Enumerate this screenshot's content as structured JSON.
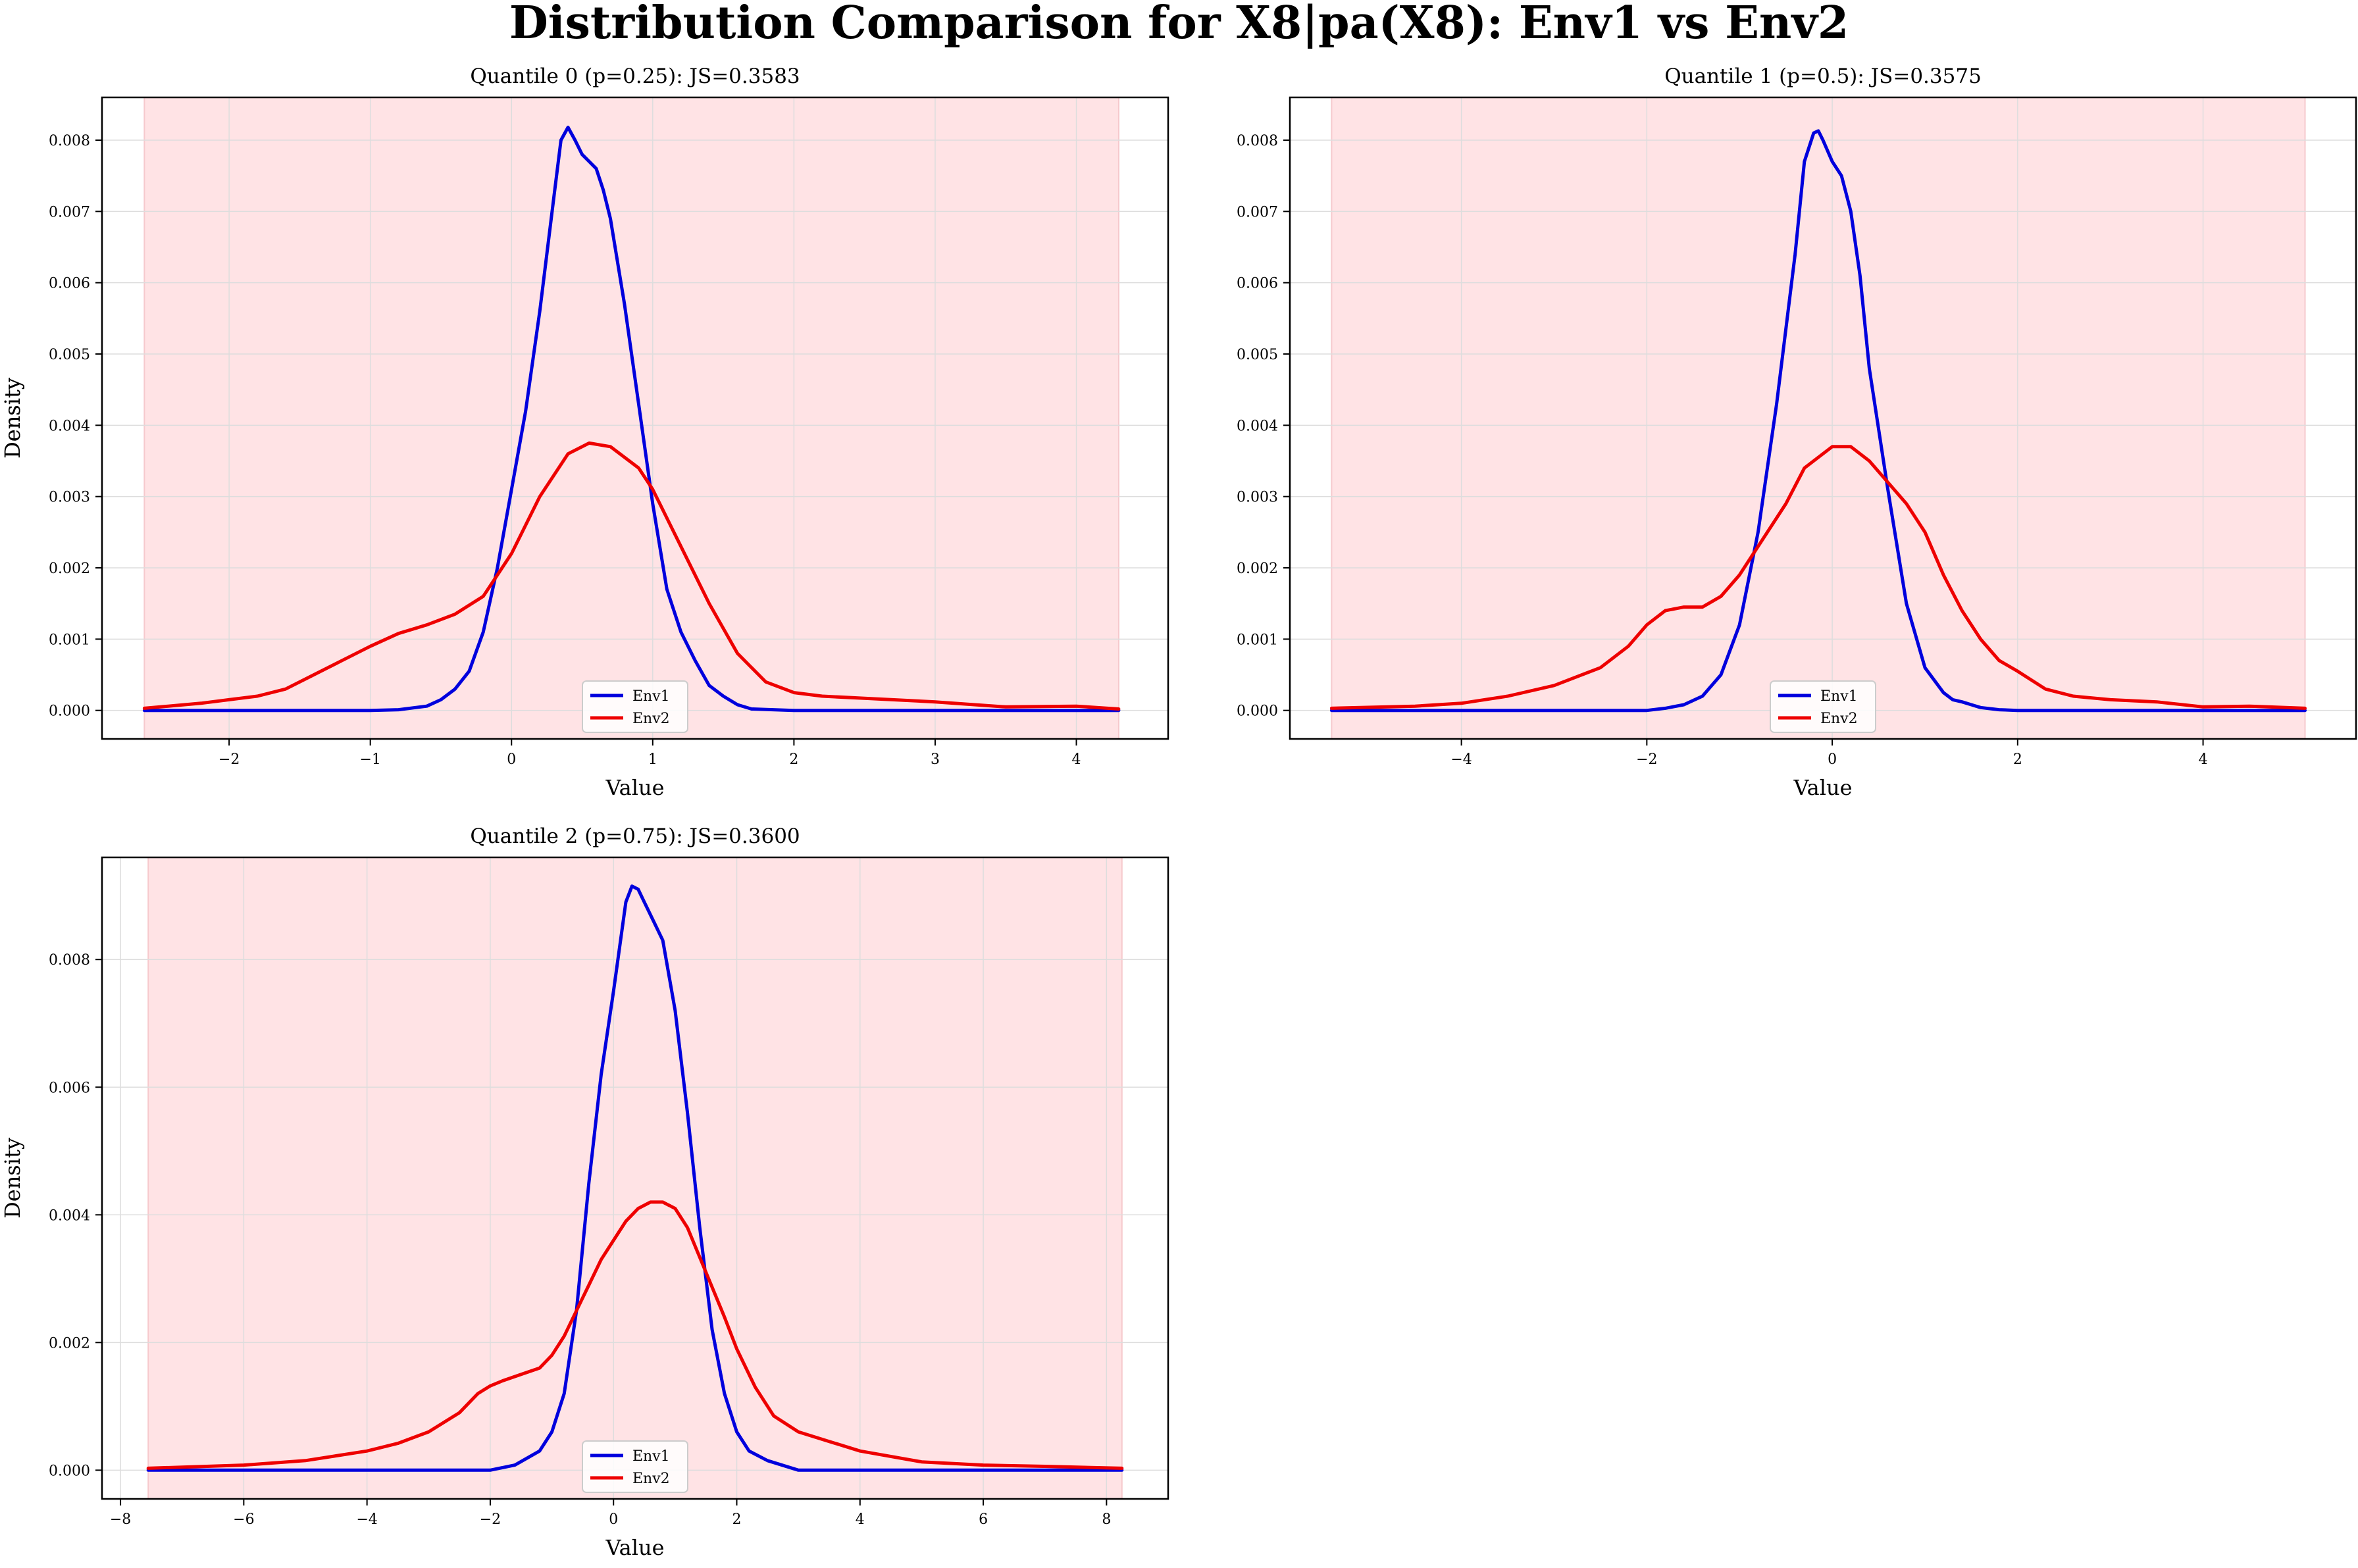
{
  "figure": {
    "title": "Distribution Comparison for X8|pa(X8): Env1 vs Env2"
  },
  "colors": {
    "env1": "#0000dd",
    "env2": "#ee0000",
    "band": "#ffe3e5",
    "band_edge": "#f6c9cd",
    "grid": "#dddddd"
  },
  "chart_data": [
    {
      "type": "line",
      "title": "Quantile 0 (p=0.25): JS=0.3583",
      "xlabel": "Value",
      "ylabel": "Density",
      "xlim": [
        -2.9,
        4.65
      ],
      "ylim": [
        -0.0004,
        0.0086
      ],
      "xticks": [
        -2,
        -1,
        0,
        1,
        2,
        3,
        4
      ],
      "xtick_labels": [
        "−2",
        "−1",
        "0",
        "1",
        "2",
        "3",
        "4"
      ],
      "yticks": [
        0,
        0.001,
        0.002,
        0.003,
        0.004,
        0.005,
        0.006,
        0.007,
        0.008
      ],
      "ytick_labels": [
        "0.000",
        "0.001",
        "0.002",
        "0.003",
        "0.004",
        "0.005",
        "0.006",
        "0.007",
        "0.008"
      ],
      "grid": true,
      "shaded_range": [
        -2.6,
        4.3
      ],
      "legend_position": "lower-center",
      "series": [
        {
          "name": "Env1",
          "color": "#0000dd",
          "x": [
            -2.6,
            -1.0,
            -0.8,
            -0.6,
            -0.5,
            -0.4,
            -0.3,
            -0.2,
            -0.1,
            0.0,
            0.1,
            0.2,
            0.3,
            0.35,
            0.4,
            0.45,
            0.5,
            0.55,
            0.6,
            0.65,
            0.7,
            0.8,
            0.9,
            1.0,
            1.1,
            1.2,
            1.3,
            1.4,
            1.5,
            1.6,
            1.7,
            2.0,
            4.3
          ],
          "y": [
            0.0,
            0.0,
            1e-05,
            6e-05,
            0.00015,
            0.0003,
            0.00055,
            0.0011,
            0.002,
            0.0031,
            0.0042,
            0.0056,
            0.0072,
            0.008,
            0.00818,
            0.008,
            0.0078,
            0.0077,
            0.0076,
            0.0073,
            0.0069,
            0.0057,
            0.0043,
            0.0029,
            0.0017,
            0.0011,
            0.0007,
            0.00035,
            0.0002,
            8e-05,
            2e-05,
            0.0,
            0.0
          ]
        },
        {
          "name": "Env2",
          "color": "#ee0000",
          "x": [
            -2.6,
            -2.2,
            -2.0,
            -1.8,
            -1.6,
            -1.4,
            -1.2,
            -1.0,
            -0.8,
            -0.6,
            -0.4,
            -0.2,
            0.0,
            0.2,
            0.4,
            0.55,
            0.7,
            0.9,
            1.0,
            1.2,
            1.4,
            1.6,
            1.8,
            2.0,
            2.2,
            2.5,
            3.0,
            3.5,
            4.0,
            4.3
          ],
          "y": [
            3e-05,
            0.0001,
            0.00015,
            0.0002,
            0.0003,
            0.0005,
            0.0007,
            0.0009,
            0.00108,
            0.0012,
            0.00135,
            0.0016,
            0.0022,
            0.003,
            0.0036,
            0.00375,
            0.0037,
            0.0034,
            0.0031,
            0.0023,
            0.0015,
            0.0008,
            0.0004,
            0.00025,
            0.0002,
            0.00017,
            0.00012,
            5e-05,
            6e-05,
            2e-05
          ]
        }
      ]
    },
    {
      "type": "line",
      "title": "Quantile 1 (p=0.5): JS=0.3575",
      "xlabel": "Value",
      "ylabel": "Density",
      "xlim": [
        -5.85,
        5.65
      ],
      "ylim": [
        -0.0004,
        0.0086
      ],
      "xticks": [
        -4,
        -2,
        0,
        2,
        4
      ],
      "xtick_labels": [
        "−4",
        "−2",
        "0",
        "2",
        "4"
      ],
      "yticks": [
        0,
        0.001,
        0.002,
        0.003,
        0.004,
        0.005,
        0.006,
        0.007,
        0.008
      ],
      "ytick_labels": [
        "0.000",
        "0.001",
        "0.002",
        "0.003",
        "0.004",
        "0.005",
        "0.006",
        "0.007",
        "0.008"
      ],
      "grid": true,
      "shaded_range": [
        -5.4,
        5.1
      ],
      "legend_position": "lower-center",
      "series": [
        {
          "name": "Env1",
          "color": "#0000dd",
          "x": [
            -5.4,
            -2.0,
            -1.8,
            -1.6,
            -1.4,
            -1.2,
            -1.0,
            -0.8,
            -0.6,
            -0.4,
            -0.3,
            -0.2,
            -0.15,
            -0.1,
            0.0,
            0.1,
            0.2,
            0.3,
            0.4,
            0.6,
            0.8,
            1.0,
            1.2,
            1.3,
            1.4,
            1.5,
            1.6,
            1.8,
            2.0,
            5.1
          ],
          "y": [
            0.0,
            0.0,
            3e-05,
            8e-05,
            0.0002,
            0.0005,
            0.0012,
            0.0025,
            0.0043,
            0.0064,
            0.0077,
            0.0081,
            0.00813,
            0.008,
            0.0077,
            0.0075,
            0.007,
            0.0061,
            0.0048,
            0.0031,
            0.0015,
            0.0006,
            0.00025,
            0.00015,
            0.00012,
            8e-05,
            4e-05,
            1e-05,
            0.0,
            0.0
          ]
        },
        {
          "name": "Env2",
          "color": "#ee0000",
          "x": [
            -5.4,
            -4.5,
            -4.0,
            -3.5,
            -3.0,
            -2.5,
            -2.2,
            -2.0,
            -1.8,
            -1.6,
            -1.4,
            -1.2,
            -1.0,
            -0.8,
            -0.5,
            -0.3,
            0.0,
            0.2,
            0.4,
            0.6,
            0.8,
            1.0,
            1.2,
            1.4,
            1.6,
            1.8,
            2.0,
            2.3,
            2.6,
            3.0,
            3.5,
            4.0,
            4.5,
            5.1
          ],
          "y": [
            3e-05,
            6e-05,
            0.0001,
            0.0002,
            0.00035,
            0.0006,
            0.0009,
            0.0012,
            0.0014,
            0.00145,
            0.00145,
            0.0016,
            0.0019,
            0.0023,
            0.0029,
            0.0034,
            0.0037,
            0.0037,
            0.0035,
            0.0032,
            0.0029,
            0.0025,
            0.0019,
            0.0014,
            0.001,
            0.0007,
            0.00055,
            0.0003,
            0.0002,
            0.00015,
            0.00012,
            5e-05,
            6e-05,
            3e-05
          ]
        }
      ]
    },
    {
      "type": "line",
      "title": "Quantile 2 (p=0.75): JS=0.3600",
      "xlabel": "Value",
      "ylabel": "Density",
      "xlim": [
        -8.3,
        9.0
      ],
      "ylim": [
        -0.00045,
        0.0096
      ],
      "xticks": [
        -8,
        -6,
        -4,
        -2,
        0,
        2,
        4,
        6,
        8
      ],
      "xtick_labels": [
        "−8",
        "−6",
        "−4",
        "−2",
        "0",
        "2",
        "4",
        "6",
        "8"
      ],
      "yticks": [
        0,
        0.002,
        0.004,
        0.006,
        0.008
      ],
      "ytick_labels": [
        "0.000",
        "0.002",
        "0.004",
        "0.006",
        "0.008"
      ],
      "grid": true,
      "shaded_range": [
        -7.55,
        8.25
      ],
      "legend_position": "lower-center",
      "series": [
        {
          "name": "Env1",
          "color": "#0000dd",
          "x": [
            -7.55,
            -2.0,
            -1.6,
            -1.2,
            -1.0,
            -0.8,
            -0.6,
            -0.4,
            -0.2,
            0.0,
            0.2,
            0.3,
            0.4,
            0.5,
            0.6,
            0.8,
            1.0,
            1.2,
            1.4,
            1.6,
            1.8,
            2.0,
            2.2,
            2.5,
            3.0,
            8.25
          ],
          "y": [
            0.0,
            0.0,
            8e-05,
            0.0003,
            0.0006,
            0.0012,
            0.0025,
            0.0045,
            0.0062,
            0.0075,
            0.0089,
            0.00915,
            0.0091,
            0.0089,
            0.0087,
            0.0083,
            0.0072,
            0.0056,
            0.0038,
            0.0022,
            0.0012,
            0.0006,
            0.0003,
            0.00015,
            0.0,
            0.0
          ]
        },
        {
          "name": "Env2",
          "color": "#ee0000",
          "x": [
            -7.55,
            -6.0,
            -5.0,
            -4.0,
            -3.5,
            -3.0,
            -2.5,
            -2.2,
            -2.0,
            -1.8,
            -1.5,
            -1.2,
            -1.0,
            -0.8,
            -0.6,
            -0.4,
            -0.2,
            0.0,
            0.2,
            0.4,
            0.6,
            0.8,
            1.0,
            1.2,
            1.5,
            1.8,
            2.0,
            2.3,
            2.6,
            3.0,
            3.5,
            4.0,
            5.0,
            6.0,
            7.0,
            8.25
          ],
          "y": [
            3e-05,
            8e-05,
            0.00015,
            0.0003,
            0.00042,
            0.0006,
            0.0009,
            0.0012,
            0.00132,
            0.0014,
            0.0015,
            0.0016,
            0.0018,
            0.0021,
            0.0025,
            0.0029,
            0.0033,
            0.0036,
            0.0039,
            0.0041,
            0.0042,
            0.0042,
            0.0041,
            0.0038,
            0.0031,
            0.0024,
            0.0019,
            0.0013,
            0.00085,
            0.0006,
            0.00045,
            0.0003,
            0.00013,
            8e-05,
            6e-05,
            3e-05
          ]
        }
      ]
    }
  ]
}
